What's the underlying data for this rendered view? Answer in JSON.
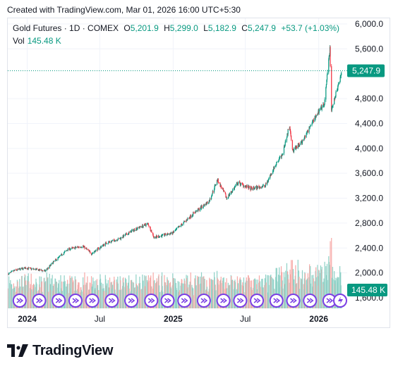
{
  "header": {
    "created_text": "Created with TradingView.com, Mar 01, 2026 16:00 UTC+5:30"
  },
  "legend": {
    "symbol": "Gold Futures · 1D · COMEX",
    "o_label": "O",
    "o_value": "5,201.9",
    "h_label": "H",
    "h_value": "5,299.0",
    "l_label": "L",
    "l_value": "5,182.9",
    "c_label": "C",
    "c_value": "5,247.9",
    "change": "+53.7 (+1.03%)",
    "vol_label": "Vol",
    "vol_value": "145.48 K"
  },
  "brand": {
    "name": "TradingView"
  },
  "colors": {
    "up": "#089981",
    "down": "#f23645",
    "up_vol": "#8fd1c6",
    "down_vol": "#f7a9a7",
    "event": "#7b3fe4",
    "axis_text": "#131722"
  },
  "chart_data": {
    "type": "candlestick",
    "x_axis_labels": [
      "2024",
      "Jul",
      "2025",
      "Jul",
      "2026"
    ],
    "x_range": [
      "2023-11-15",
      "2026-03-01"
    ],
    "y_axis_labels": [
      "6,000.0",
      "5,600.0",
      "4,800.0",
      "4,400.0",
      "4,000.0",
      "3,600.0",
      "3,200.0",
      "2,800.0",
      "2,400.0",
      "2,000.0",
      "1,600.0"
    ],
    "y_range": [
      1600,
      6000
    ],
    "last_price": 5247.9,
    "last_price_label": "5,247.9",
    "last_volume_label": "145.48 K",
    "price_path": [
      [
        "2023-11-15",
        1985
      ],
      [
        "2023-12-01",
        2040
      ],
      [
        "2023-12-28",
        2080
      ],
      [
        "2024-02-15",
        2030
      ],
      [
        "2024-03-08",
        2180
      ],
      [
        "2024-04-12",
        2380
      ],
      [
        "2024-05-20",
        2430
      ],
      [
        "2024-06-10",
        2310
      ],
      [
        "2024-07-17",
        2480
      ],
      [
        "2024-08-20",
        2550
      ],
      [
        "2024-09-26",
        2700
      ],
      [
        "2024-10-30",
        2790
      ],
      [
        "2024-11-14",
        2570
      ],
      [
        "2024-12-31",
        2640
      ],
      [
        "2025-02-20",
        2950
      ],
      [
        "2025-04-01",
        3150
      ],
      [
        "2025-04-22",
        3500
      ],
      [
        "2025-05-15",
        3200
      ],
      [
        "2025-06-13",
        3450
      ],
      [
        "2025-07-15",
        3350
      ],
      [
        "2025-08-20",
        3400
      ],
      [
        "2025-09-10",
        3680
      ],
      [
        "2025-10-01",
        3900
      ],
      [
        "2025-10-20",
        4380
      ],
      [
        "2025-10-28",
        3960
      ],
      [
        "2025-11-20",
        4100
      ],
      [
        "2025-12-26",
        4550
      ],
      [
        "2026-01-15",
        4700
      ],
      [
        "2026-01-29",
        5600
      ],
      [
        "2026-02-02",
        4600
      ],
      [
        "2026-02-20",
        5050
      ],
      [
        "2026-03-01",
        5247.9
      ]
    ],
    "event_markers": [
      "2023-12-13",
      "2024-01-31",
      "2024-03-20",
      "2024-05-01",
      "2024-06-12",
      "2024-07-31",
      "2024-09-18",
      "2024-11-07",
      "2024-12-18",
      "2025-01-29",
      "2025-03-19",
      "2025-05-07",
      "2025-06-18",
      "2025-07-30",
      "2025-09-17",
      "2025-10-29",
      "2025-12-10",
      "2026-01-28"
    ]
  }
}
